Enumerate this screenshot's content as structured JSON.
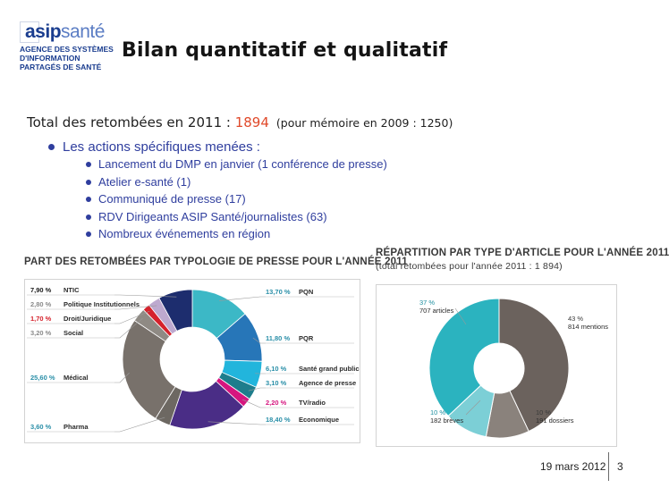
{
  "logo": {
    "word_a": "asip",
    "word_b": "santé",
    "sub": [
      "AGENCE DES SYSTÈMES",
      "D'INFORMATION",
      "PARTAGÉS DE SANTÉ"
    ]
  },
  "slide": {
    "title": "Bilan quantitatif et qualitatif",
    "total_label": "Total des retombées en 2011 : ",
    "total_value": "1894",
    "memo": "(pour mémoire en 2009 : 1250)",
    "actions_heading": "Les actions spécifiques menées :",
    "actions": [
      "Lancement du DMP en janvier (1 conférence de presse)",
      "Atelier e-santé (1)",
      "Communiqué de presse (17)",
      "RDV Dirigeants ASIP Santé/journalistes (63)",
      "Nombreux événements en région"
    ],
    "date": "19 mars 2012",
    "page": "3"
  },
  "colors": {
    "accent": "#e04a2b",
    "bullet_text": "#2f3e9e",
    "brand_dark": "#1a3d8f",
    "brand_light": "#5b7dc4"
  },
  "chart_data": [
    {
      "type": "pie",
      "title": "PART DES RETOMBÉES PAR TYPOLOGIE DE PRESSE POUR L'ANNÉE 2011",
      "categories": [
        "PQN",
        "PQR",
        "Santé grand public",
        "Agence de presse",
        "TV/radio",
        "Economique",
        "Pharma",
        "Médical",
        "Social",
        "Droit/Juridique",
        "Politique Institutionnels",
        "NTIC"
      ],
      "values": [
        13.7,
        11.8,
        6.1,
        3.1,
        2.2,
        18.4,
        3.6,
        25.6,
        3.2,
        1.7,
        2.8,
        7.9
      ],
      "labels": [
        "13,70 %",
        "11,80 %",
        "6,10 %",
        "3,10 %",
        "2,20 %",
        "18,40 %",
        "3,60 %",
        "25,60 %",
        "3,20 %",
        "1,70 %",
        "2,80 %",
        "7,90 %"
      ],
      "colors": [
        "#3cb8c6",
        "#2776b8",
        "#22b5dc",
        "#1e7d8c",
        "#d6157f",
        "#4a2d86",
        "#6d6862",
        "#78716b",
        "#8f8a84",
        "#d5222c",
        "#bda9cf",
        "#1d2d6e"
      ],
      "label_colors": [
        "#2a8fa8",
        "#2a8fa8",
        "#2a8fa8",
        "#2a8fa8",
        "#d6157f",
        "#2a8fa8",
        "#2a8fa8",
        "#2a8fa8",
        "#8a8a8a",
        "#d5222c",
        "#8a8a8a",
        "#1a1a1a"
      ]
    },
    {
      "type": "pie",
      "title": "RÉPARTITION PAR TYPE D'ARTICLE POUR L'ANNÉE 2011",
      "subtitle": "(total retombées pour l'année 2011 : 1 894)",
      "categories": [
        "mentions",
        "dossiers",
        "brèves",
        "articles"
      ],
      "values": [
        43,
        10,
        10,
        37
      ],
      "counts": [
        814,
        191,
        182,
        707
      ],
      "pct_labels": [
        "43 %",
        "10 %",
        "10 %",
        "37 %"
      ],
      "count_labels": [
        "814 mentions",
        "191 dossiers",
        "182 brèves",
        "707 articles"
      ],
      "colors": [
        "#6b625d",
        "#8a827c",
        "#7ccfd6",
        "#2bb3bf"
      ]
    }
  ]
}
